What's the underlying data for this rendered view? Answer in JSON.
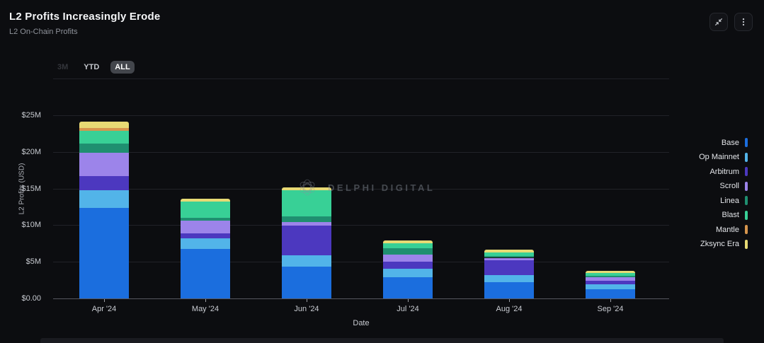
{
  "header": {
    "title": "L2 Profits Increasingly Erode",
    "subtitle": "L2 On-Chain Profits"
  },
  "toolbar": {
    "ranges": [
      {
        "label": "3M",
        "state": "disabled"
      },
      {
        "label": "YTD",
        "state": "normal"
      },
      {
        "label": "ALL",
        "state": "selected"
      }
    ]
  },
  "window_controls": {
    "collapse_icon": "collapse-arrows",
    "menu_icon": "kebab-menu"
  },
  "watermark": {
    "text": "DELPHI DIGITAL",
    "logo": "delphi-flower-logo"
  },
  "chart_data": {
    "type": "bar",
    "stacked": true,
    "title": "L2 On-Chain Profits",
    "xlabel": "Date",
    "ylabel": "L2 Profits (USD)",
    "categories": [
      "Apr '24",
      "May '24",
      "Jun '24",
      "Jul '24",
      "Aug '24",
      "Sep '24"
    ],
    "series": [
      {
        "name": "Base",
        "color": "#1b6ede",
        "values": [
          12.4,
          6.8,
          4.3,
          2.9,
          2.2,
          1.3
        ]
      },
      {
        "name": "Op Mainnet",
        "color": "#52b4e9",
        "values": [
          2.4,
          1.45,
          1.55,
          1.2,
          1.0,
          0.65
        ]
      },
      {
        "name": "Arbitrum",
        "color": "#4c38bf",
        "values": [
          1.9,
          0.65,
          4.1,
          0.9,
          2.0,
          0.5
        ]
      },
      {
        "name": "Scroll",
        "color": "#9c84ea",
        "values": [
          3.2,
          1.7,
          0.45,
          1.0,
          0.35,
          0.4
        ]
      },
      {
        "name": "Linea",
        "color": "#1f8f70",
        "values": [
          1.2,
          0.4,
          0.75,
          0.85,
          0.2,
          0.25
        ]
      },
      {
        "name": "Blast",
        "color": "#38d096",
        "values": [
          1.8,
          2.2,
          3.65,
          0.65,
          0.5,
          0.4
        ]
      },
      {
        "name": "Mantle",
        "color": "#d6954d",
        "values": [
          0.4,
          0,
          0,
          0,
          0,
          0
        ]
      },
      {
        "name": "Zksync Era",
        "color": "#e7da74",
        "values": [
          0.8,
          0.45,
          0.4,
          0.4,
          0.45,
          0.3
        ]
      }
    ],
    "totals": [
      24.1,
      13.65,
      15.2,
      7.9,
      6.7,
      3.8
    ],
    "y_ticks": [
      {
        "label": "$25M",
        "value": 25
      },
      {
        "label": "$20M",
        "value": 20
      },
      {
        "label": "$15M",
        "value": 15
      },
      {
        "label": "$10M",
        "value": 10
      },
      {
        "label": "$5M",
        "value": 5
      },
      {
        "label": "$0.00",
        "value": 0
      }
    ],
    "ylim": [
      0,
      30
    ],
    "grid": true,
    "legend_position": "right"
  }
}
